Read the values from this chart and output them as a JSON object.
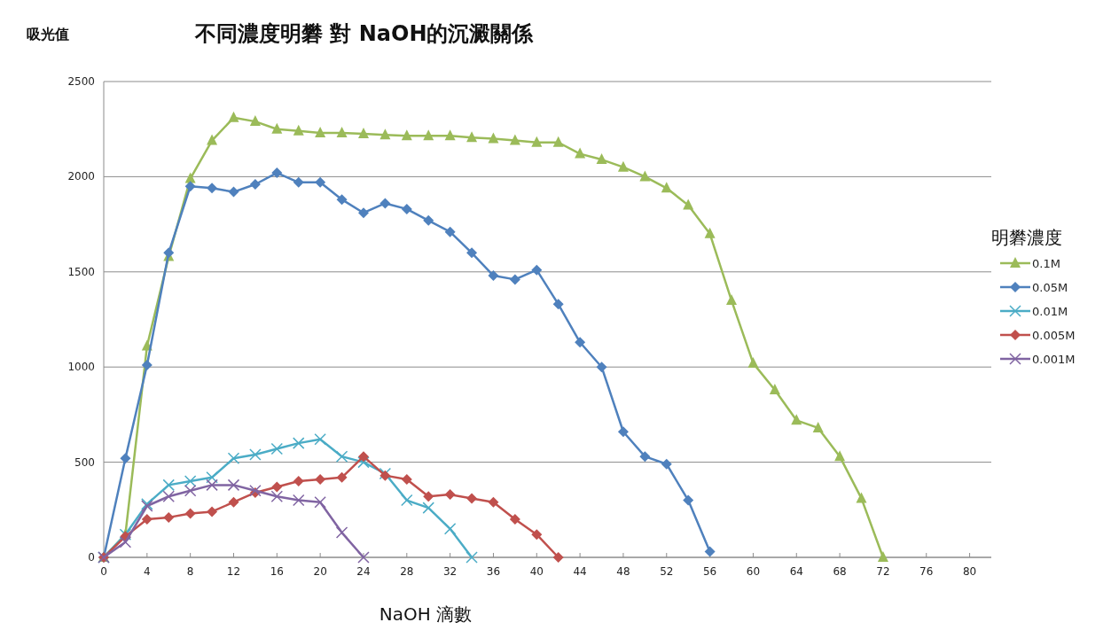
{
  "chart_data": {
    "type": "line",
    "title": "不同濃度明礬 對 NaOH的沉澱關係",
    "ylabel": "吸光值",
    "xlabel": "NaOH 滴數",
    "legend_title": "明礬濃度",
    "legend": "right",
    "grid": "y",
    "line_style": "solid",
    "xlim": [
      0,
      82
    ],
    "xticks": [
      0,
      4,
      8,
      12,
      16,
      20,
      24,
      28,
      32,
      36,
      40,
      44,
      48,
      52,
      56,
      60,
      64,
      68,
      72,
      76,
      80
    ],
    "ylim": [
      0,
      2500
    ],
    "yticks": [
      0,
      500,
      1000,
      1500,
      2000,
      2500
    ],
    "series": [
      {
        "name": "0.1M",
        "color": "#9bbb59",
        "marker": "triangle",
        "x": [
          0,
          2,
          4,
          6,
          8,
          10,
          12,
          14,
          16,
          18,
          20,
          22,
          24,
          26,
          28,
          30,
          32,
          34,
          36,
          38,
          40,
          42,
          44,
          46,
          48,
          50,
          52,
          54,
          56,
          58,
          60,
          62,
          64,
          66,
          68,
          70,
          72
        ],
        "values": [
          0,
          120,
          1110,
          1580,
          1990,
          2190,
          2310,
          2290,
          2250,
          2240,
          2230,
          2230,
          2225,
          2220,
          2215,
          2215,
          2215,
          2205,
          2200,
          2190,
          2180,
          2180,
          2120,
          2090,
          2050,
          2000,
          1940,
          1850,
          1700,
          1350,
          1020,
          880,
          720,
          680,
          530,
          310,
          0
        ]
      },
      {
        "name": "0.05M",
        "color": "#4f81bd",
        "marker": "diamond",
        "x": [
          0,
          2,
          4,
          6,
          8,
          10,
          12,
          14,
          16,
          18,
          20,
          22,
          24,
          26,
          28,
          30,
          32,
          34,
          36,
          38,
          40,
          42,
          44,
          46,
          48,
          50,
          52,
          54,
          56
        ],
        "values": [
          0,
          520,
          1010,
          1600,
          1950,
          1940,
          1920,
          1960,
          2020,
          1970,
          1970,
          1880,
          1810,
          1860,
          1830,
          1770,
          1710,
          1600,
          1480,
          1460,
          1510,
          1330,
          1130,
          1000,
          660,
          530,
          490,
          300,
          30
        ]
      },
      {
        "name": "0.01M",
        "color": "#4bacc6",
        "marker": "cross",
        "x": [
          0,
          2,
          4,
          6,
          8,
          10,
          12,
          14,
          16,
          18,
          20,
          22,
          24,
          26,
          28,
          30,
          32,
          34
        ],
        "values": [
          0,
          120,
          280,
          380,
          400,
          420,
          520,
          540,
          570,
          600,
          620,
          530,
          500,
          440,
          300,
          260,
          150,
          0
        ]
      },
      {
        "name": "0.005M",
        "color": "#c0504d",
        "marker": "diamond",
        "x": [
          0,
          2,
          4,
          6,
          8,
          10,
          12,
          14,
          16,
          18,
          20,
          22,
          24,
          26,
          28,
          30,
          32,
          34,
          36,
          38,
          40,
          42
        ],
        "values": [
          0,
          110,
          200,
          210,
          230,
          240,
          290,
          340,
          370,
          400,
          410,
          420,
          530,
          430,
          410,
          320,
          330,
          310,
          290,
          200,
          120,
          0
        ]
      },
      {
        "name": "0.001M",
        "color": "#8064a2",
        "marker": "cross",
        "x": [
          0,
          2,
          4,
          6,
          8,
          10,
          12,
          14,
          16,
          18,
          20,
          22,
          24
        ],
        "values": [
          0,
          80,
          270,
          320,
          350,
          380,
          380,
          350,
          320,
          300,
          290,
          130,
          0
        ]
      }
    ]
  }
}
